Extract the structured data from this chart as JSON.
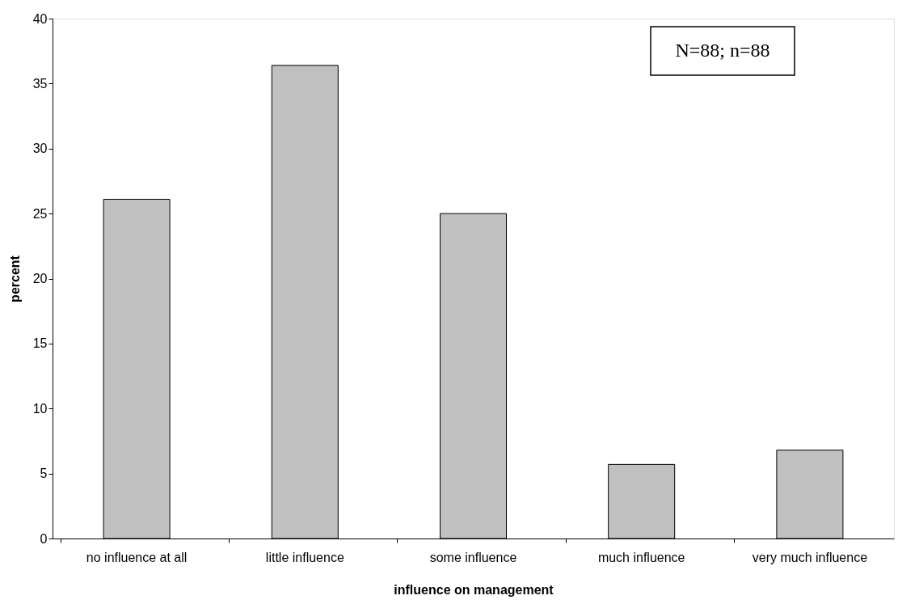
{
  "chart_data": {
    "type": "bar",
    "xlabel": "influence on management",
    "ylabel": "percent",
    "categories": [
      "no influence at all",
      "little influence",
      "some influence",
      "much influence",
      "very much influence"
    ],
    "values": [
      26.1,
      36.4,
      25.0,
      5.7,
      6.8
    ],
    "color": "#c0c0c0",
    "ylim": [
      0,
      40
    ],
    "yticks": [
      0,
      5,
      10,
      15,
      20,
      25,
      30,
      35,
      40
    ],
    "grid": false,
    "annotations": [
      "N=88; n=88"
    ]
  }
}
